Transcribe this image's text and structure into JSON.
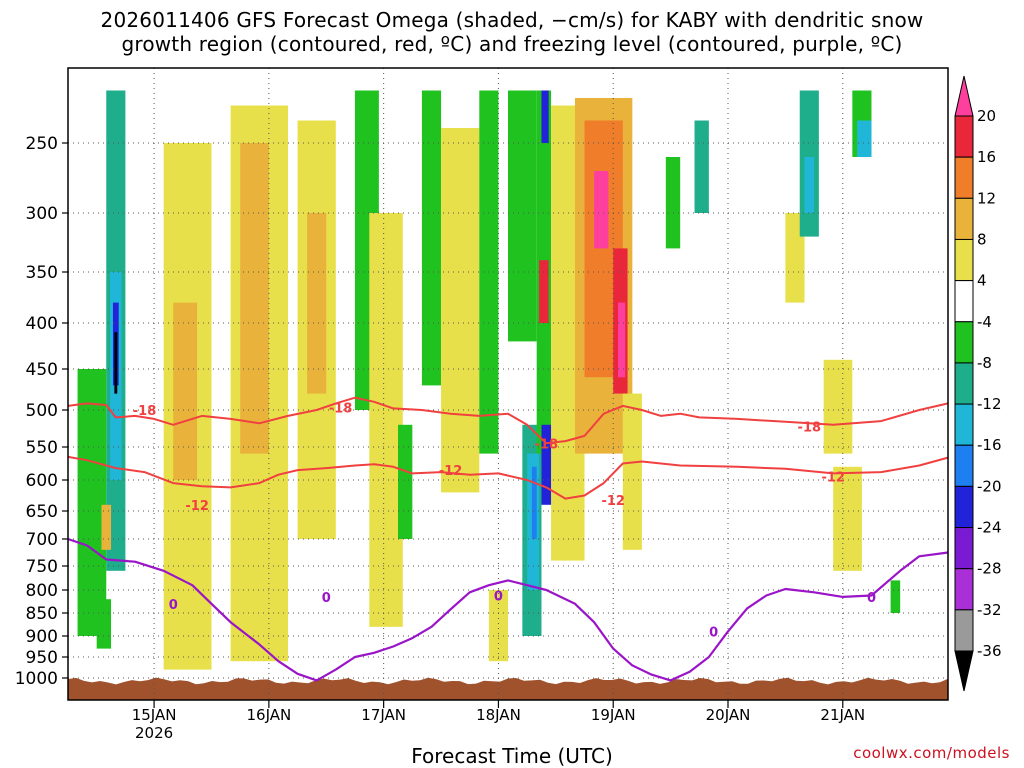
{
  "chart_data": {
    "type": "time-height cross-section",
    "title_line1": "2026011406 GFS Forecast Omega (shaded, −cm/s) for KABY with dendritic snow",
    "title_line2": "growth region (contoured, red, ºC) and freezing level (contoured, purple, ºC)",
    "xlabel": "Forecast Time (UTC)",
    "credit": "coolwx.com/models",
    "x_unit": "hours since 14JAN 06Z",
    "x_range": [
      0,
      184
    ],
    "x_ticks": [
      {
        "label": "15JAN",
        "sub": "2026",
        "hour": 18
      },
      {
        "label": "16JAN",
        "sub": "",
        "hour": 42
      },
      {
        "label": "17JAN",
        "sub": "",
        "hour": 66
      },
      {
        "label": "18JAN",
        "sub": "",
        "hour": 90
      },
      {
        "label": "19JAN",
        "sub": "",
        "hour": 114
      },
      {
        "label": "20JAN",
        "sub": "",
        "hour": 138
      },
      {
        "label": "21JAN",
        "sub": "",
        "hour": 162
      }
    ],
    "y_unit": "hPa",
    "y_ticks": [
      250,
      300,
      350,
      400,
      450,
      500,
      550,
      600,
      650,
      700,
      750,
      800,
      850,
      900,
      950,
      1000
    ],
    "colorbar_labels": [
      "20",
      "16",
      "12",
      "8",
      "4",
      "-4",
      "-8",
      "-12",
      "-16",
      "-20",
      "-24",
      "-28",
      "-32",
      "-36"
    ],
    "colorbar_colors": [
      "#ff3f9e",
      "#e8283a",
      "#ef7d2a",
      "#e9b33b",
      "#e8e04a",
      "#ffffff",
      "#1fc21f",
      "#1fae8c",
      "#1fb6d8",
      "#1e7ff0",
      "#2222d8",
      "#7a1ad2",
      "#a92fd6",
      "#9a9a9a",
      "#000000"
    ],
    "omega_cells": [
      {
        "t0": 2,
        "t1": 8,
        "p0": 450,
        "p1": 900,
        "c": "#1fc21f"
      },
      {
        "t0": 8,
        "t1": 12,
        "p0": 180,
        "p1": 760,
        "c": "#1fae8c"
      },
      {
        "t0": 8.8,
        "t1": 11.2,
        "p0": 350,
        "p1": 600,
        "c": "#1fb6d8"
      },
      {
        "t0": 9.4,
        "t1": 10.6,
        "p0": 380,
        "p1": 470,
        "c": "#2222d8"
      },
      {
        "t0": 9.7,
        "t1": 10.3,
        "p0": 410,
        "p1": 480,
        "c": "#000000"
      },
      {
        "t0": 7,
        "t1": 9,
        "p0": 640,
        "p1": 720,
        "c": "#e9b33b"
      },
      {
        "t0": 6,
        "t1": 9,
        "p0": 820,
        "p1": 930,
        "c": "#1fc21f"
      },
      {
        "t0": 20,
        "t1": 30,
        "p0": 250,
        "p1": 980,
        "c": "#e8e04a"
      },
      {
        "t0": 22,
        "t1": 27,
        "p0": 380,
        "p1": 600,
        "c": "#e9b33b"
      },
      {
        "t0": 34,
        "t1": 46,
        "p0": 200,
        "p1": 960,
        "c": "#e8e04a"
      },
      {
        "t0": 36,
        "t1": 42,
        "p0": 250,
        "p1": 560,
        "c": "#e9b33b"
      },
      {
        "t0": 48,
        "t1": 56,
        "p0": 220,
        "p1": 700,
        "c": "#e8e04a"
      },
      {
        "t0": 50,
        "t1": 54,
        "p0": 300,
        "p1": 480,
        "c": "#e9b33b"
      },
      {
        "t0": 60,
        "t1": 65,
        "p0": 180,
        "p1": 500,
        "c": "#1fc21f"
      },
      {
        "t0": 63,
        "t1": 70,
        "p0": 300,
        "p1": 880,
        "c": "#e8e04a"
      },
      {
        "t0": 69,
        "t1": 72,
        "p0": 520,
        "p1": 700,
        "c": "#1fc21f"
      },
      {
        "t0": 74,
        "t1": 78,
        "p0": 180,
        "p1": 470,
        "c": "#1fc21f"
      },
      {
        "t0": 78,
        "t1": 86,
        "p0": 230,
        "p1": 620,
        "c": "#e8e04a"
      },
      {
        "t0": 86,
        "t1": 90,
        "p0": 180,
        "p1": 560,
        "c": "#1fc21f"
      },
      {
        "t0": 88,
        "t1": 92,
        "p0": 800,
        "p1": 960,
        "c": "#e8e04a"
      },
      {
        "t0": 92,
        "t1": 98,
        "p0": 180,
        "p1": 420,
        "c": "#1fc21f"
      },
      {
        "t0": 95,
        "t1": 99,
        "p0": 520,
        "p1": 900,
        "c": "#1fae8c"
      },
      {
        "t0": 96,
        "t1": 98.5,
        "p0": 560,
        "p1": 800,
        "c": "#1fb6d8"
      },
      {
        "t0": 97,
        "t1": 98,
        "p0": 580,
        "p1": 700,
        "c": "#1e7ff0"
      },
      {
        "t0": 98,
        "t1": 101,
        "p0": 180,
        "p1": 560,
        "c": "#1fc21f"
      },
      {
        "t0": 99,
        "t1": 100.5,
        "p0": 180,
        "p1": 250,
        "c": "#2222d8"
      },
      {
        "t0": 98.5,
        "t1": 100.5,
        "p0": 340,
        "p1": 400,
        "c": "#e8283a"
      },
      {
        "t0": 99,
        "t1": 103,
        "p0": 520,
        "p1": 640,
        "c": "#2222d8"
      },
      {
        "t0": 101,
        "t1": 108,
        "p0": 200,
        "p1": 740,
        "c": "#e8e04a"
      },
      {
        "t0": 106,
        "t1": 118,
        "p0": 190,
        "p1": 560,
        "c": "#e9b33b"
      },
      {
        "t0": 108,
        "t1": 116,
        "p0": 220,
        "p1": 460,
        "c": "#ef7d2a"
      },
      {
        "t0": 110,
        "t1": 113,
        "p0": 270,
        "p1": 330,
        "c": "#ff3f9e"
      },
      {
        "t0": 114,
        "t1": 117,
        "p0": 330,
        "p1": 480,
        "c": "#e8283a"
      },
      {
        "t0": 115,
        "t1": 116.5,
        "p0": 380,
        "p1": 460,
        "c": "#ff3f9e"
      },
      {
        "t0": 116,
        "t1": 120,
        "p0": 480,
        "p1": 720,
        "c": "#e8e04a"
      },
      {
        "t0": 125,
        "t1": 128,
        "p0": 260,
        "p1": 330,
        "c": "#1fc21f"
      },
      {
        "t0": 131,
        "t1": 134,
        "p0": 220,
        "p1": 300,
        "c": "#1fae8c"
      },
      {
        "t0": 150,
        "t1": 154,
        "p0": 300,
        "p1": 380,
        "c": "#e8e04a"
      },
      {
        "t0": 153,
        "t1": 157,
        "p0": 180,
        "p1": 320,
        "c": "#1fae8c"
      },
      {
        "t0": 154,
        "t1": 156,
        "p0": 260,
        "p1": 300,
        "c": "#1fb6d8"
      },
      {
        "t0": 158,
        "t1": 164,
        "p0": 440,
        "p1": 560,
        "c": "#e8e04a"
      },
      {
        "t0": 160,
        "t1": 166,
        "p0": 580,
        "p1": 760,
        "c": "#e8e04a"
      },
      {
        "t0": 164,
        "t1": 168,
        "p0": 180,
        "p1": 260,
        "c": "#1fc21f"
      },
      {
        "t0": 165,
        "t1": 168,
        "p0": 220,
        "p1": 260,
        "c": "#1fb6d8"
      },
      {
        "t0": 172,
        "t1": 174,
        "p0": 780,
        "p1": 850,
        "c": "#1fc21f"
      }
    ],
    "contours": [
      {
        "name": "dgz-minus18",
        "label": "-18",
        "color": "#f04040",
        "width": 2,
        "points": [
          [
            0,
            495
          ],
          [
            4,
            492
          ],
          [
            8,
            494
          ],
          [
            10,
            510
          ],
          [
            14,
            508
          ],
          [
            18,
            512
          ],
          [
            22,
            520
          ],
          [
            28,
            508
          ],
          [
            34,
            512
          ],
          [
            40,
            518
          ],
          [
            46,
            508
          ],
          [
            52,
            500
          ],
          [
            56,
            492
          ],
          [
            60,
            485
          ],
          [
            64,
            490
          ],
          [
            68,
            498
          ],
          [
            74,
            500
          ],
          [
            80,
            505
          ],
          [
            86,
            508
          ],
          [
            92,
            505
          ],
          [
            96,
            520
          ],
          [
            100,
            545
          ],
          [
            104,
            542
          ],
          [
            108,
            535
          ],
          [
            112,
            505
          ],
          [
            116,
            495
          ],
          [
            120,
            500
          ],
          [
            124,
            508
          ],
          [
            128,
            505
          ],
          [
            132,
            510
          ],
          [
            140,
            512
          ],
          [
            150,
            516
          ],
          [
            160,
            520
          ],
          [
            170,
            515
          ],
          [
            178,
            500
          ],
          [
            184,
            492
          ]
        ],
        "labels": [
          {
            "t": 16,
            "p": 500
          },
          {
            "t": 57,
            "p": 497
          },
          {
            "t": 100,
            "p": 545
          },
          {
            "t": 155,
            "p": 522
          }
        ]
      },
      {
        "name": "dgz-minus12",
        "label": "-12",
        "color": "#f04040",
        "width": 2,
        "points": [
          [
            0,
            565
          ],
          [
            4,
            570
          ],
          [
            10,
            582
          ],
          [
            16,
            588
          ],
          [
            22,
            605
          ],
          [
            28,
            610
          ],
          [
            34,
            612
          ],
          [
            40,
            605
          ],
          [
            44,
            592
          ],
          [
            48,
            585
          ],
          [
            54,
            582
          ],
          [
            60,
            578
          ],
          [
            64,
            576
          ],
          [
            68,
            580
          ],
          [
            72,
            590
          ],
          [
            78,
            588
          ],
          [
            84,
            592
          ],
          [
            90,
            590
          ],
          [
            96,
            600
          ],
          [
            100,
            612
          ],
          [
            104,
            630
          ],
          [
            108,
            625
          ],
          [
            112,
            605
          ],
          [
            116,
            575
          ],
          [
            120,
            572
          ],
          [
            128,
            578
          ],
          [
            140,
            580
          ],
          [
            150,
            583
          ],
          [
            160,
            590
          ],
          [
            170,
            588
          ],
          [
            178,
            578
          ],
          [
            184,
            566
          ]
        ],
        "labels": [
          {
            "t": 27,
            "p": 640
          },
          {
            "t": 80,
            "p": 585
          },
          {
            "t": 114,
            "p": 632
          },
          {
            "t": 160,
            "p": 595
          }
        ]
      },
      {
        "name": "freezing-level",
        "label": "0",
        "color": "#9a14c8",
        "width": 2.2,
        "points": [
          [
            0,
            700
          ],
          [
            4,
            712
          ],
          [
            8,
            738
          ],
          [
            14,
            742
          ],
          [
            20,
            760
          ],
          [
            26,
            790
          ],
          [
            30,
            830
          ],
          [
            34,
            870
          ],
          [
            40,
            920
          ],
          [
            44,
            960
          ],
          [
            48,
            990
          ],
          [
            52,
            1003
          ],
          [
            56,
            980
          ],
          [
            60,
            950
          ],
          [
            64,
            940
          ],
          [
            68,
            925
          ],
          [
            72,
            905
          ],
          [
            76,
            880
          ],
          [
            80,
            842
          ],
          [
            84,
            805
          ],
          [
            88,
            790
          ],
          [
            92,
            780
          ],
          [
            96,
            790
          ],
          [
            100,
            800
          ],
          [
            106,
            830
          ],
          [
            110,
            870
          ],
          [
            114,
            930
          ],
          [
            118,
            970
          ],
          [
            122,
            992
          ],
          [
            126,
            1003
          ],
          [
            130,
            985
          ],
          [
            134,
            950
          ],
          [
            138,
            890
          ],
          [
            142,
            840
          ],
          [
            146,
            812
          ],
          [
            150,
            798
          ],
          [
            156,
            805
          ],
          [
            162,
            815
          ],
          [
            168,
            812
          ],
          [
            174,
            760
          ],
          [
            178,
            732
          ],
          [
            184,
            725
          ]
        ],
        "labels": [
          {
            "t": 22,
            "p": 830
          },
          {
            "t": 54,
            "p": 815
          },
          {
            "t": 90,
            "p": 812
          },
          {
            "t": 135,
            "p": 890
          },
          {
            "t": 168,
            "p": 815
          }
        ]
      }
    ]
  }
}
